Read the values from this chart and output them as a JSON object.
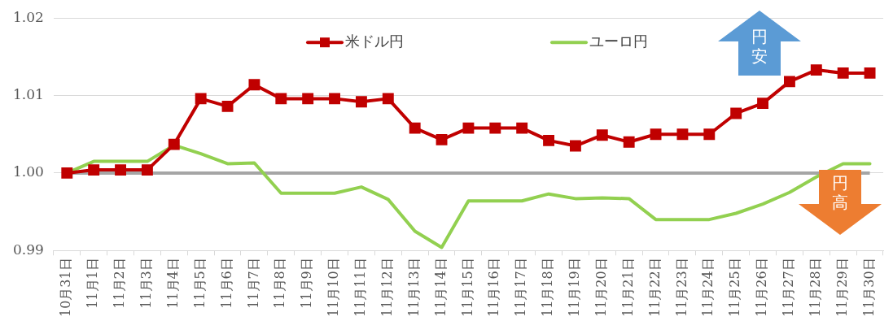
{
  "chart_data": {
    "type": "line",
    "categories": [
      "10月31日",
      "11月1日",
      "11月2日",
      "11月3日",
      "11月4日",
      "11月5日",
      "11月6日",
      "11月7日",
      "11月8日",
      "11月9日",
      "11月10日",
      "11月11日",
      "11月12日",
      "11月13日",
      "11月14日",
      "11月15日",
      "11月16日",
      "11月17日",
      "11月18日",
      "11月19日",
      "11月20日",
      "11月21日",
      "11月22日",
      "11月23日",
      "11月24日",
      "11月25日",
      "11月26日",
      "11月27日",
      "11月28日",
      "11月29日",
      "11月30日"
    ],
    "series": [
      {
        "name": "米ドル円",
        "color": "#c00000",
        "marker": "square",
        "values": [
          1.0,
          1.0004,
          1.0004,
          1.0004,
          1.0037,
          1.0096,
          1.0086,
          1.0114,
          1.0096,
          1.0096,
          1.0096,
          1.0092,
          1.0096,
          1.0058,
          1.0043,
          1.0058,
          1.0058,
          1.0058,
          1.0042,
          1.0035,
          1.0049,
          1.004,
          1.005,
          1.005,
          1.005,
          1.0077,
          1.009,
          1.0118,
          1.0133,
          1.0129,
          1.0129
        ]
      },
      {
        "name": "ユーロ円",
        "color": "#92d050",
        "marker": "none",
        "values": [
          1.0,
          1.0015,
          1.0015,
          1.0015,
          1.0036,
          1.0025,
          1.0012,
          1.0013,
          0.9974,
          0.9974,
          0.9974,
          0.9982,
          0.9966,
          0.9925,
          0.9904,
          0.9964,
          0.9964,
          0.9964,
          0.9973,
          0.9967,
          0.9968,
          0.9967,
          0.994,
          0.994,
          0.994,
          0.9948,
          0.996,
          0.9975,
          0.9995,
          1.0012,
          1.0012
        ]
      }
    ],
    "ylim": [
      0.99,
      1.02
    ],
    "yticks": [
      {
        "value": 0.99,
        "label": "0.99"
      },
      {
        "value": 1.0,
        "label": "1.00"
      },
      {
        "value": 1.01,
        "label": "1.01"
      },
      {
        "value": 1.02,
        "label": "1.02"
      }
    ],
    "ref_lines": [
      {
        "axis": "y",
        "value": 1.0,
        "color": "#a5a5a5"
      }
    ],
    "annotations": [
      "円安",
      "円高"
    ],
    "grid": "y",
    "legend": "top",
    "line_style": "solid"
  }
}
